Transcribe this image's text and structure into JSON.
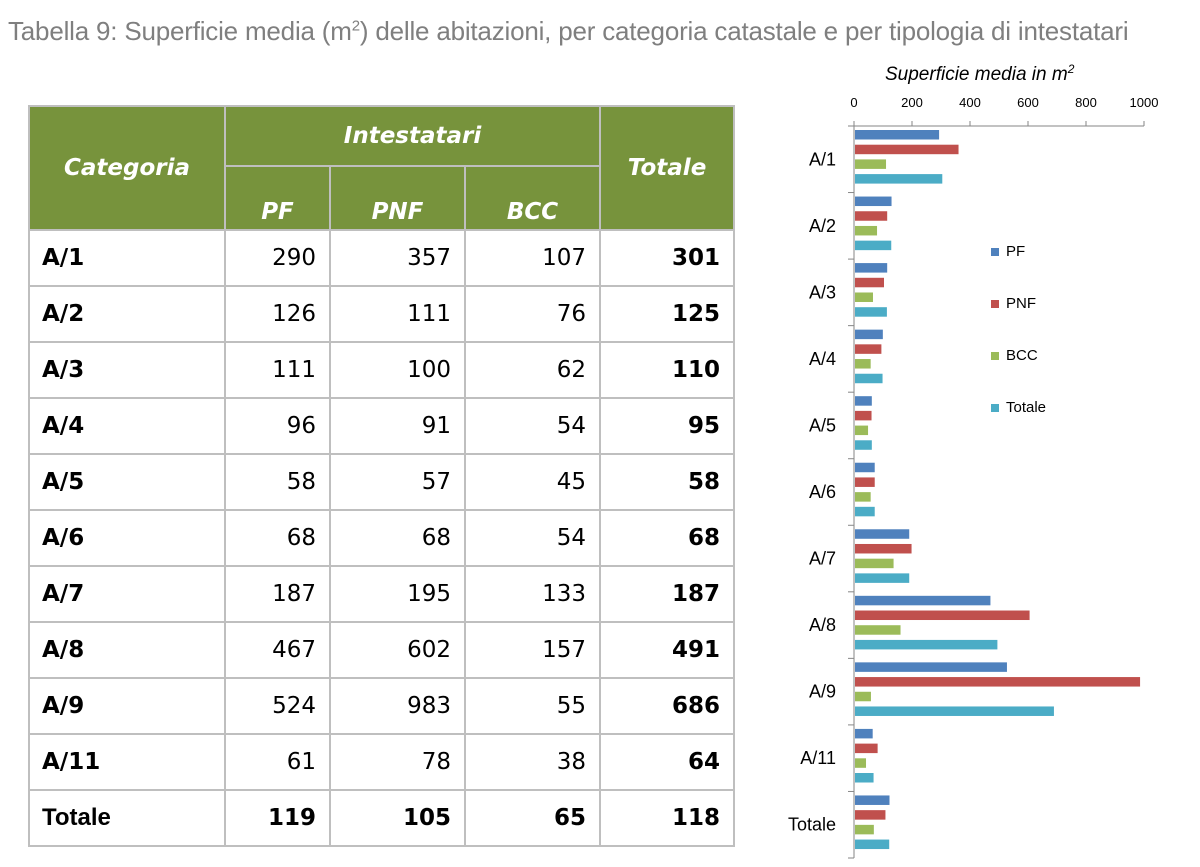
{
  "title": {
    "prefix": "Tabella 9: Superficie media (m",
    "superscript": "2",
    "suffix": ") delle abitazioni, per categoria catastale e per tipologia di intestatari"
  },
  "table": {
    "col_categoria": "Categoria",
    "col_intestatari": "Intestatari",
    "col_totale": "Totale",
    "sub_cols": [
      "PF",
      "PNF",
      "BCC"
    ],
    "rows": [
      {
        "cat": "A/1",
        "pf": "290",
        "pnf": "357",
        "bcc": "107",
        "tot": "301"
      },
      {
        "cat": "A/2",
        "pf": "126",
        "pnf": "111",
        "bcc": "76",
        "tot": "125"
      },
      {
        "cat": "A/3",
        "pf": "111",
        "pnf": "100",
        "bcc": "62",
        "tot": "110"
      },
      {
        "cat": "A/4",
        "pf": "96",
        "pnf": "91",
        "bcc": "54",
        "tot": "95"
      },
      {
        "cat": "A/5",
        "pf": "58",
        "pnf": "57",
        "bcc": "45",
        "tot": "58"
      },
      {
        "cat": "A/6",
        "pf": "68",
        "pnf": "68",
        "bcc": "54",
        "tot": "68"
      },
      {
        "cat": "A/7",
        "pf": "187",
        "pnf": "195",
        "bcc": "133",
        "tot": "187"
      },
      {
        "cat": "A/8",
        "pf": "467",
        "pnf": "602",
        "bcc": "157",
        "tot": "491"
      },
      {
        "cat": "A/9",
        "pf": "524",
        "pnf": "983",
        "bcc": "55",
        "tot": "686"
      },
      {
        "cat": "A/11",
        "pf": "61",
        "pnf": "78",
        "bcc": "38",
        "tot": "64"
      },
      {
        "cat": "Totale",
        "pf": "119",
        "pnf": "105",
        "bcc": "65",
        "tot": "118"
      }
    ]
  },
  "colors": {
    "header_green": "#77933c",
    "PF": "#4f81bd",
    "PNF": "#c0504d",
    "BCC": "#9bbb59",
    "Totale": "#4bacc6"
  },
  "chart_data": {
    "type": "bar",
    "orientation": "horizontal",
    "axis_title": "Superficie media in m",
    "axis_title_superscript": "2",
    "axis_position": "top",
    "xlim": [
      0,
      1000
    ],
    "x_ticks": [
      0,
      200,
      400,
      600,
      800,
      1000
    ],
    "categories": [
      "A/1",
      "A/2",
      "A/3",
      "A/4",
      "A/5",
      "A/6",
      "A/7",
      "A/8",
      "A/9",
      "A/11",
      "Totale"
    ],
    "series": [
      {
        "name": "PF",
        "color": "#4f81bd",
        "values": [
          290,
          126,
          111,
          96,
          58,
          68,
          187,
          467,
          524,
          61,
          119
        ]
      },
      {
        "name": "PNF",
        "color": "#c0504d",
        "values": [
          357,
          111,
          100,
          91,
          57,
          68,
          195,
          602,
          983,
          78,
          105
        ]
      },
      {
        "name": "BCC",
        "color": "#9bbb59",
        "values": [
          107,
          76,
          62,
          54,
          45,
          54,
          133,
          157,
          55,
          38,
          65
        ]
      },
      {
        "name": "Totale",
        "color": "#4bacc6",
        "values": [
          301,
          125,
          110,
          95,
          58,
          68,
          187,
          491,
          686,
          64,
          118
        ]
      }
    ],
    "legend_position": "right",
    "grid": false
  }
}
